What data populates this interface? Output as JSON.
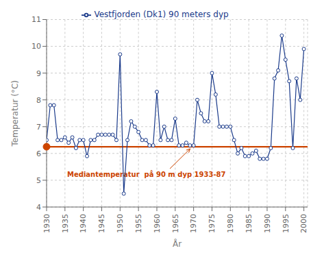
{
  "chart_data": {
    "type": "line",
    "xlabel": "År",
    "ylabel": "Temperatur (°C)",
    "x": [
      1930,
      1931,
      1932,
      1933,
      1934,
      1935,
      1936,
      1937,
      1938,
      1939,
      1940,
      1941,
      1942,
      1943,
      1944,
      1945,
      1946,
      1947,
      1948,
      1949,
      1950,
      1951,
      1952,
      1953,
      1954,
      1955,
      1956,
      1957,
      1958,
      1959,
      1960,
      1961,
      1962,
      1963,
      1964,
      1965,
      1966,
      1967,
      1968,
      1969,
      1970,
      1971,
      1972,
      1973,
      1974,
      1975,
      1976,
      1977,
      1978,
      1979,
      1980,
      1981,
      1982,
      1983,
      1984,
      1985,
      1986,
      1987,
      1988,
      1989,
      1990,
      1991,
      1992,
      1993,
      1994,
      1995,
      1996,
      1997,
      1998,
      1999,
      2000
    ],
    "series": [
      {
        "name": "Vestfjorden (Dk1) 90 meters dyp",
        "color": "#1a3a8a",
        "marker": "circle",
        "values": [
          6.5,
          7.8,
          7.8,
          6.5,
          6.5,
          6.6,
          6.4,
          6.6,
          6.2,
          6.5,
          6.5,
          5.9,
          6.5,
          6.5,
          6.7,
          6.7,
          6.7,
          6.7,
          6.7,
          6.5,
          9.7,
          4.5,
          6.5,
          7.2,
          7.0,
          6.8,
          6.5,
          6.5,
          6.3,
          6.3,
          8.3,
          6.5,
          7.0,
          6.5,
          6.5,
          7.3,
          6.3,
          6.3,
          6.4,
          6.3,
          6.3,
          8.0,
          7.5,
          7.2,
          7.2,
          9.0,
          8.2,
          7.0,
          7.0,
          7.0,
          7.0,
          6.5,
          6.0,
          6.2,
          5.9,
          5.9,
          6.0,
          6.1,
          5.8,
          5.8,
          5.8,
          6.2,
          8.8,
          9.1,
          10.4,
          9.5,
          8.7,
          6.2,
          8.8,
          8.0,
          9.9
        ]
      }
    ],
    "xlim": [
      1930,
      2001
    ],
    "ylim": [
      4,
      11
    ],
    "xticks": [
      1930,
      1935,
      1940,
      1945,
      1950,
      1955,
      1960,
      1965,
      1970,
      1975,
      1980,
      1985,
      1990,
      1995,
      2000
    ],
    "yticks": [
      4,
      5,
      6,
      7,
      8,
      9,
      10,
      11
    ],
    "grid": true,
    "legend": "upper center",
    "median": {
      "value": 6.25,
      "label": "Mediantemperatur  på 90 m dyp 1933-87",
      "color": "#cc4400"
    }
  }
}
